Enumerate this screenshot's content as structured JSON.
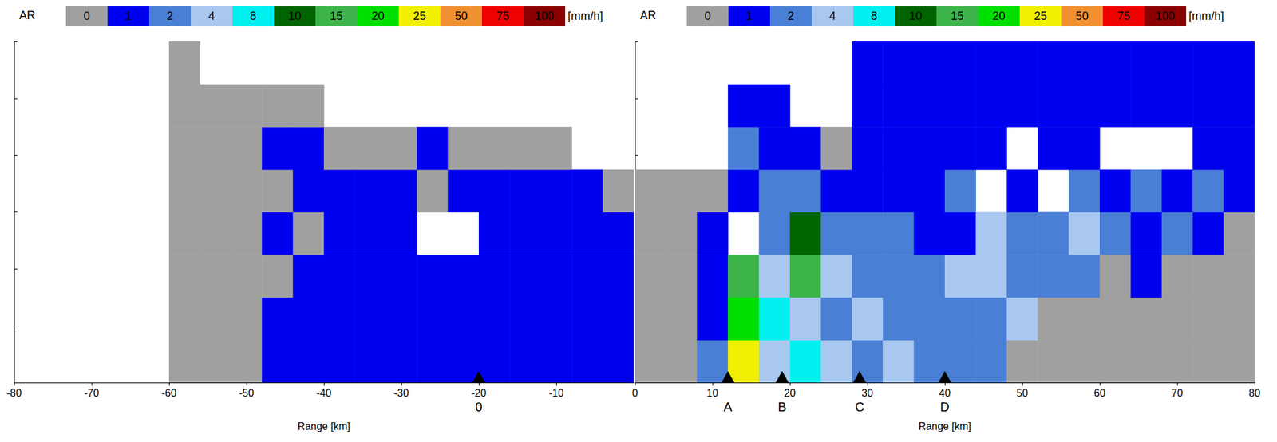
{
  "chart_data": [
    {
      "type": "heatmap",
      "grid": false,
      "tick_labels": "x",
      "x_label": "Range [km]",
      "xlim": [
        -80,
        0
      ],
      "xticks": [
        -80,
        -70,
        -60,
        -50,
        -40,
        -30,
        -20,
        -10
      ],
      "ylim": [
        0,
        12
      ],
      "yticks": [
        0,
        2,
        4,
        6,
        8,
        10,
        12
      ],
      "colorbar": {
        "title": "AR",
        "unit": "[mm/h]",
        "levels": [
          0,
          1,
          2,
          4,
          8,
          10,
          15,
          20,
          25,
          50,
          75,
          100
        ],
        "colors": [
          "#a0a0a0",
          "#0000f0",
          "#4a7fd6",
          "#a8c8f0",
          "#00f0f0",
          "#006400",
          "#3cb44a",
          "#00e000",
          "#f0f000",
          "#f09030",
          "#f00000",
          "#8b0000"
        ]
      },
      "cells": {
        "x_edges": [
          -80,
          -76,
          -72,
          -68,
          -64,
          -60,
          -56,
          -52,
          -48,
          -44,
          -40,
          -36,
          -32,
          -28,
          -24,
          -20,
          -16,
          -12,
          -8,
          -4,
          0
        ],
        "y_edges": [
          0,
          1.5,
          3,
          4.5,
          6,
          7.5,
          9,
          10.5,
          12
        ],
        "values": [
          [
            null,
            null,
            null,
            null,
            null,
            null,
            null,
            null
          ],
          [
            null,
            null,
            null,
            null,
            null,
            null,
            null,
            null
          ],
          [
            null,
            null,
            null,
            null,
            null,
            null,
            null,
            null
          ],
          [
            null,
            null,
            null,
            null,
            null,
            null,
            null,
            null
          ],
          [
            null,
            null,
            null,
            null,
            null,
            null,
            null,
            null
          ],
          [
            0,
            0,
            0,
            0,
            0,
            0,
            0,
            0
          ],
          [
            0,
            0,
            0,
            0,
            0,
            0,
            0,
            null
          ],
          [
            0,
            0,
            0,
            0,
            0,
            0,
            0,
            null
          ],
          [
            1,
            1,
            0,
            1,
            0,
            1,
            0,
            null
          ],
          [
            1,
            1,
            1,
            0,
            1,
            1,
            0,
            null
          ],
          [
            1,
            1,
            1,
            1,
            1,
            0,
            null,
            null
          ],
          [
            1,
            1,
            1,
            1,
            1,
            0,
            null,
            null
          ],
          [
            1,
            1,
            1,
            1,
            1,
            0,
            null,
            null
          ],
          [
            1,
            1,
            1,
            null,
            0,
            1,
            null,
            null
          ],
          [
            1,
            1,
            1,
            null,
            1,
            0,
            null,
            null
          ],
          [
            1,
            1,
            1,
            1,
            1,
            0,
            null,
            null
          ],
          [
            1,
            1,
            1,
            1,
            1,
            0,
            null,
            null
          ],
          [
            1,
            1,
            1,
            1,
            1,
            0,
            null,
            null
          ],
          [
            1,
            1,
            1,
            1,
            1,
            null,
            null,
            null
          ],
          [
            1,
            1,
            1,
            1,
            0,
            null,
            null,
            null
          ]
        ]
      },
      "annotations": [
        {
          "x": -20,
          "label": "0"
        }
      ]
    },
    {
      "type": "heatmap",
      "grid": false,
      "tick_labels": "x",
      "x_label": "Range [km]",
      "xlim": [
        0,
        80
      ],
      "xticks": [
        0,
        10,
        20,
        30,
        40,
        50,
        60,
        70,
        80
      ],
      "ylim": [
        0,
        12
      ],
      "yticks": [
        0,
        2,
        4,
        6,
        8,
        10,
        12
      ],
      "colorbar": {
        "title": "AR",
        "unit": "[mm/h]",
        "levels": [
          0,
          1,
          2,
          4,
          8,
          10,
          15,
          20,
          25,
          50,
          75,
          100
        ],
        "colors": [
          "#a0a0a0",
          "#0000f0",
          "#4a7fd6",
          "#a8c8f0",
          "#00f0f0",
          "#006400",
          "#3cb44a",
          "#00e000",
          "#f0f000",
          "#f09030",
          "#f00000",
          "#8b0000"
        ]
      },
      "cells": {
        "x_edges": [
          0,
          4,
          8,
          12,
          16,
          20,
          24,
          28,
          32,
          36,
          40,
          44,
          48,
          52,
          56,
          60,
          64,
          68,
          72,
          76,
          80
        ],
        "y_edges": [
          0,
          1.5,
          3,
          4.5,
          6,
          7.5,
          9,
          10.5,
          12
        ],
        "values": [
          [
            0,
            0,
            0,
            0,
            0,
            null,
            null,
            null
          ],
          [
            0,
            0,
            0,
            0,
            0,
            null,
            null,
            null
          ],
          [
            2,
            1,
            1,
            1,
            0,
            null,
            null,
            null
          ],
          [
            25,
            20,
            15,
            null,
            1,
            2,
            1,
            null
          ],
          [
            4,
            8,
            4,
            2,
            2,
            1,
            1,
            null
          ],
          [
            8,
            4,
            15,
            10,
            2,
            1,
            null,
            null
          ],
          [
            4,
            2,
            4,
            2,
            1,
            0,
            null,
            null
          ],
          [
            2,
            4,
            2,
            2,
            1,
            1,
            1,
            1
          ],
          [
            4,
            2,
            2,
            2,
            1,
            1,
            1,
            1
          ],
          [
            2,
            2,
            2,
            1,
            1,
            1,
            1,
            1
          ],
          [
            2,
            2,
            4,
            1,
            2,
            1,
            1,
            1
          ],
          [
            2,
            2,
            4,
            4,
            null,
            1,
            1,
            1
          ],
          [
            0,
            4,
            2,
            2,
            1,
            null,
            1,
            1
          ],
          [
            0,
            0,
            2,
            2,
            null,
            1,
            1,
            1
          ],
          [
            0,
            0,
            2,
            4,
            2,
            1,
            1,
            1
          ],
          [
            0,
            0,
            0,
            2,
            1,
            null,
            1,
            1
          ],
          [
            0,
            0,
            1,
            1,
            2,
            null,
            1,
            1
          ],
          [
            0,
            0,
            0,
            2,
            1,
            null,
            1,
            1
          ],
          [
            0,
            0,
            0,
            1,
            2,
            1,
            1,
            1
          ],
          [
            0,
            0,
            0,
            0,
            1,
            1,
            1,
            1
          ]
        ]
      },
      "annotations": [
        {
          "x": 12,
          "label": "A"
        },
        {
          "x": 19,
          "label": "B"
        },
        {
          "x": 29,
          "label": "C"
        },
        {
          "x": 40,
          "label": "D"
        }
      ]
    }
  ]
}
